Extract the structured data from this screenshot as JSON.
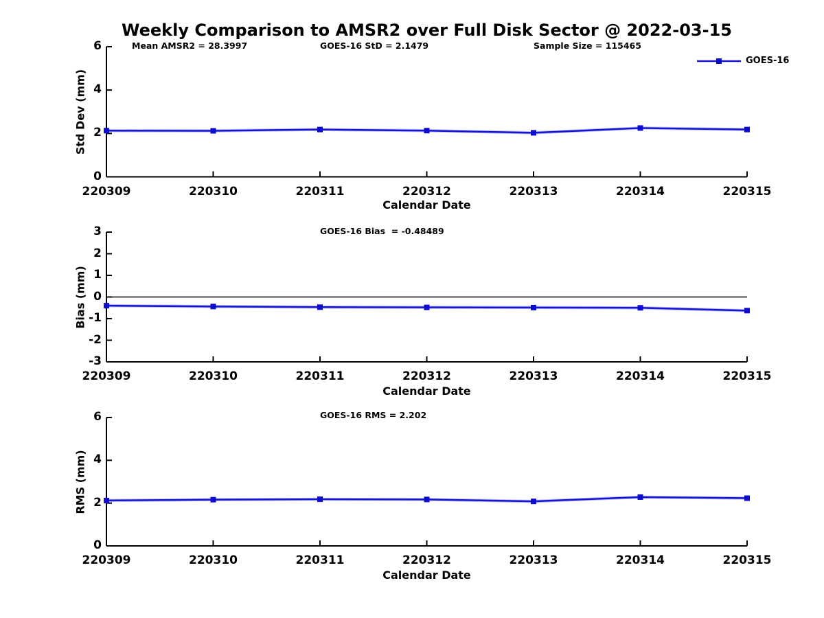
{
  "title": "Weekly Comparison to AMSR2 over Full Disk Sector @ 2022-03-15",
  "legend": {
    "label": "GOES-16",
    "line_color": "#1515cf",
    "marker_color": "#0d0dcf"
  },
  "chart_data": [
    {
      "type": "line",
      "id": "std-dev",
      "annotations": [
        "Mean AMSR2 = 28.3997",
        "GOES-16 StD = 2.1479",
        "Sample Size = 115465"
      ],
      "xlabel": "Calendar Date",
      "ylabel": "Std Dev (mm)",
      "categories": [
        "220309",
        "220310",
        "220311",
        "220312",
        "220313",
        "220314",
        "220315"
      ],
      "series": [
        {
          "name": "GOES-16",
          "values": [
            2.13,
            2.12,
            2.18,
            2.13,
            2.03,
            2.25,
            2.18
          ]
        }
      ],
      "ylim": [
        0,
        6
      ],
      "yticks": [
        0,
        2,
        4,
        6
      ],
      "zero_line": false,
      "grid": false,
      "legend_position": "top-right-outside"
    },
    {
      "type": "line",
      "id": "bias",
      "annotations": [
        "GOES-16 Bias  = -0.48489"
      ],
      "xlabel": "Calendar Date",
      "ylabel": "Bias (mm)",
      "categories": [
        "220309",
        "220310",
        "220311",
        "220312",
        "220313",
        "220314",
        "220315"
      ],
      "series": [
        {
          "name": "GOES-16",
          "values": [
            -0.4,
            -0.44,
            -0.47,
            -0.48,
            -0.49,
            -0.5,
            -0.63
          ]
        }
      ],
      "ylim": [
        -3,
        3
      ],
      "yticks": [
        -3,
        -2,
        -1,
        0,
        1,
        2,
        3
      ],
      "zero_line": true,
      "grid": false,
      "legend_position": "none"
    },
    {
      "type": "line",
      "id": "rms",
      "annotations": [
        "GOES-16 RMS = 2.202"
      ],
      "xlabel": "Calendar Date",
      "ylabel": "RMS (mm)",
      "categories": [
        "220309",
        "220310",
        "220311",
        "220312",
        "220313",
        "220314",
        "220315"
      ],
      "series": [
        {
          "name": "GOES-16",
          "values": [
            2.12,
            2.16,
            2.18,
            2.17,
            2.08,
            2.28,
            2.23
          ]
        }
      ],
      "ylim": [
        0,
        6
      ],
      "yticks": [
        0,
        2,
        4,
        6
      ],
      "zero_line": false,
      "grid": false,
      "legend_position": "none"
    }
  ]
}
